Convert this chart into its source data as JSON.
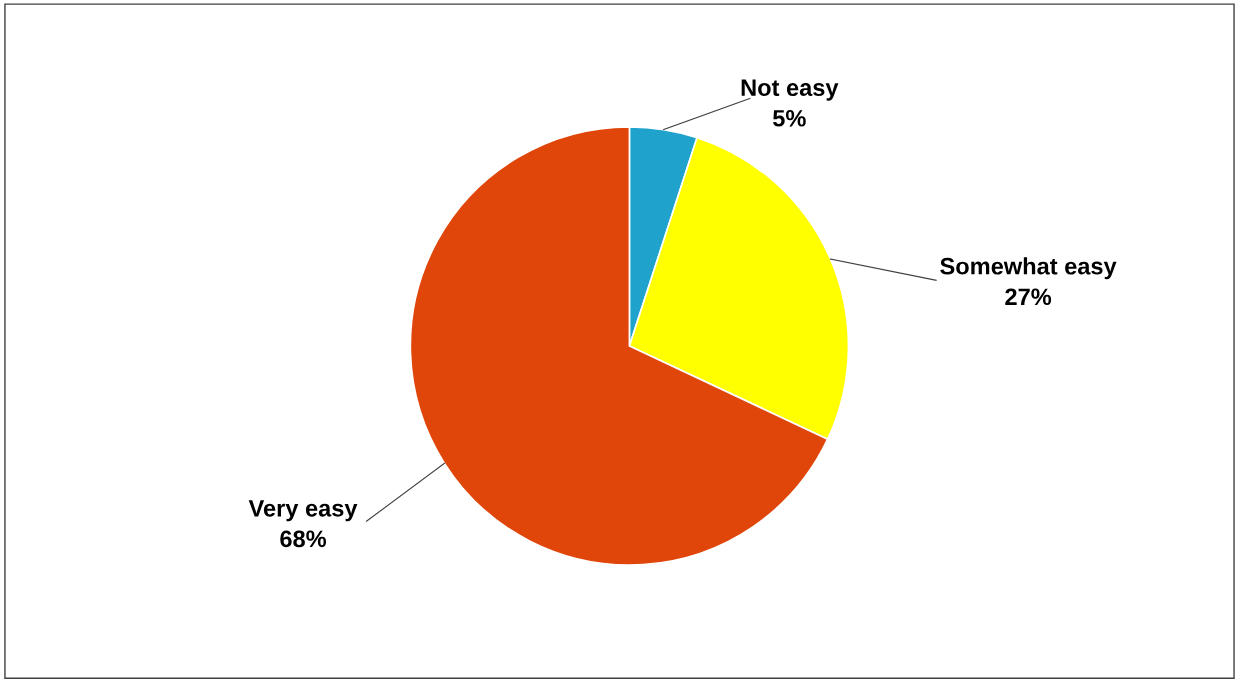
{
  "chart_data": {
    "type": "pie",
    "categories": [
      "Not easy",
      "Somewhat easy",
      "Very easy"
    ],
    "values": [
      5,
      27,
      68
    ],
    "colors": [
      "#1fa3cc",
      "#ffff00",
      "#e0450a"
    ],
    "value_labels": [
      "5%",
      "27%",
      "68%"
    ]
  }
}
